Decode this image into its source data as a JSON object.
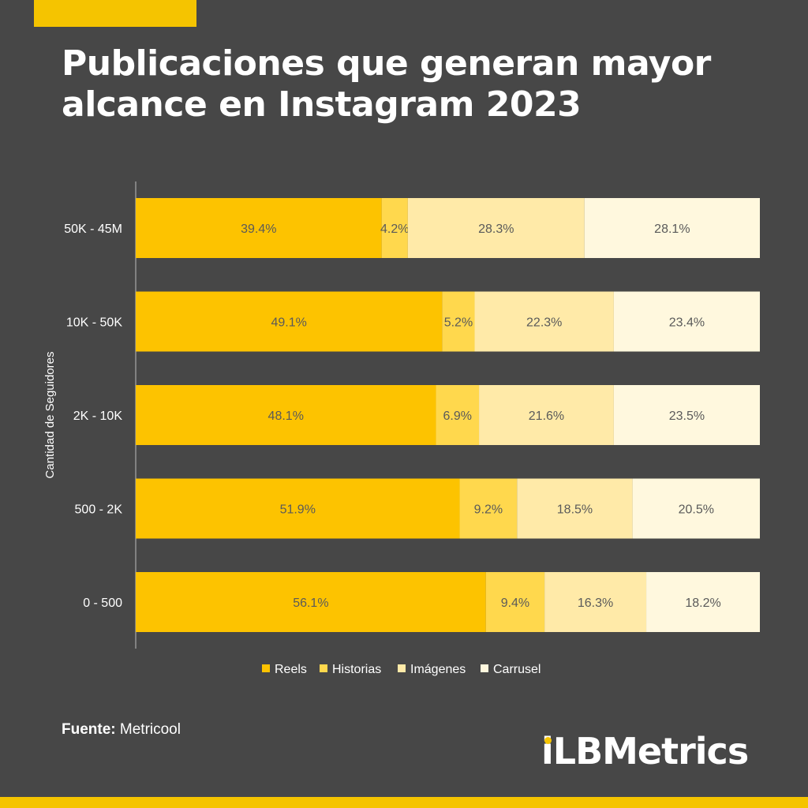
{
  "header": {
    "title_line1": "Publicaciones que generan mayor",
    "title_line2": "alcance en Instagram 2023"
  },
  "footer": {
    "source_label": "Fuente:",
    "source_value": "Metricool",
    "logo_text": "iLBMetrics"
  },
  "colors": {
    "background": "#474747",
    "accent": "#F5C400",
    "reels": "#FDC300",
    "historias": "#FFD84D",
    "imagenes": "#FFEAA8",
    "carrusel": "#FFF8DE"
  },
  "chart_data": {
    "type": "bar",
    "orientation": "horizontal",
    "stacked": true,
    "ylabel": "Cantidad de Seguidores",
    "categories": [
      "50K - 45M",
      "10K - 50K",
      "2K - 10K",
      "500 - 2K",
      "0 - 500"
    ],
    "series": [
      {
        "name": "Reels",
        "values": [
          39.4,
          49.1,
          48.1,
          51.9,
          56.1
        ]
      },
      {
        "name": "Historias",
        "values": [
          4.2,
          5.2,
          6.9,
          9.2,
          9.4
        ]
      },
      {
        "name": "Imágenes",
        "values": [
          28.3,
          22.3,
          21.6,
          18.5,
          16.3
        ]
      },
      {
        "name": "Carrusel",
        "values": [
          28.1,
          23.4,
          23.5,
          20.5,
          18.2
        ]
      }
    ],
    "value_suffix": "%",
    "xlim": [
      0,
      100
    ],
    "grid": false,
    "legend_position": "bottom"
  }
}
